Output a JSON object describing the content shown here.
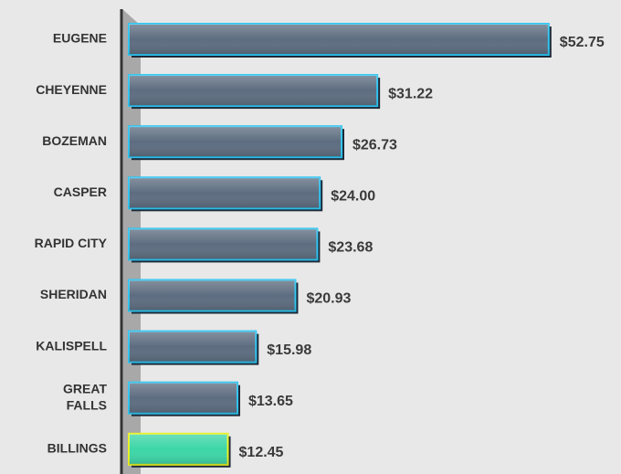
{
  "chart_data": {
    "type": "hbar",
    "categories": [
      "EUGENE",
      "CHEYENNE",
      "BOZEMAN",
      "CASPER",
      "RAPID CITY",
      "SHERIDAN",
      "KALISPELL",
      "GREAT FALLS",
      "BILLINGS"
    ],
    "values": [
      52.75,
      31.22,
      26.73,
      24.0,
      23.68,
      20.93,
      15.98,
      13.65,
      12.45
    ],
    "value_labels": [
      "$52.75",
      "$31.22",
      "$26.73",
      "$24.00",
      "$23.68",
      "$20.93",
      "$15.98",
      "$13.65",
      "$12.45"
    ],
    "colors": [
      "#5d6d80",
      "#5d6d80",
      "#5d6d80",
      "#5d6d80",
      "#5d6d80",
      "#5d6d80",
      "#5d6d80",
      "#5d6d80",
      "#3dd6a6"
    ],
    "border_colors": [
      "#2ec4f0",
      "#2ec4f0",
      "#2ec4f0",
      "#2ec4f0",
      "#2ec4f0",
      "#2ec4f0",
      "#2ec4f0",
      "#2ec4f0",
      "#e8f020"
    ],
    "xlim": [
      0,
      60
    ]
  }
}
